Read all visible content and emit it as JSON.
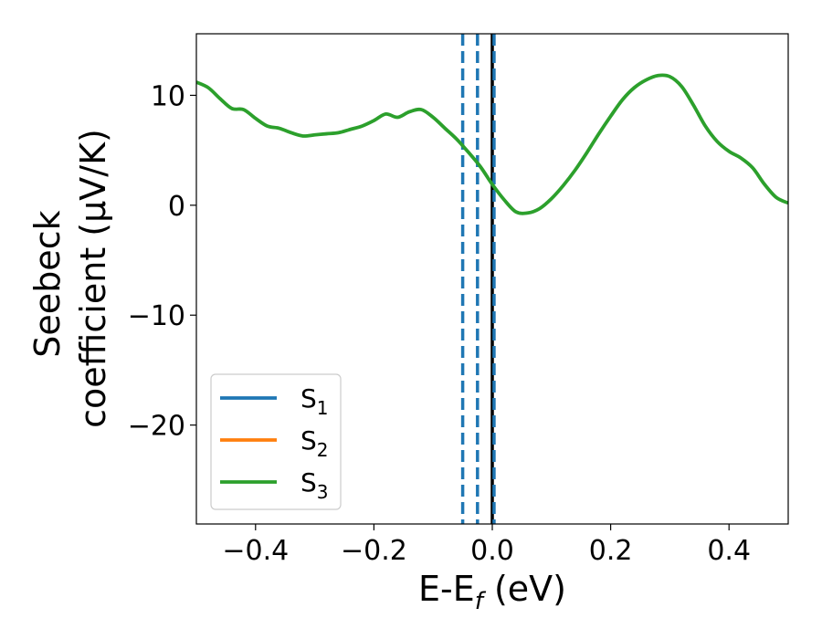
{
  "chart_data": {
    "type": "line",
    "xlabel": {
      "main": "E-E",
      "sub": "f",
      "suffix": " (eV)"
    },
    "ylabel": {
      "line1": "Seebeck",
      "line2": "coefficient  (μV/K)"
    },
    "xlim": [
      -0.5,
      0.5
    ],
    "ylim": [
      -29,
      15.6
    ],
    "xticks": [
      -0.4,
      -0.2,
      0.0,
      0.2,
      0.4
    ],
    "xtick_labels": [
      "−0.4",
      "−0.2",
      "0.0",
      "0.2",
      "0.4"
    ],
    "yticks": [
      -20,
      -10,
      0,
      10
    ],
    "ytick_labels": [
      "−20",
      "−10",
      "0",
      "10"
    ],
    "grid": false,
    "legend_position": "lower-left",
    "series": [
      {
        "name": "S",
        "sub": "1",
        "color": "#1f77b4",
        "x": [],
        "y": []
      },
      {
        "name": "S",
        "sub": "2",
        "color": "#ff7f0e",
        "x": [],
        "y": []
      },
      {
        "name": "S",
        "sub": "3",
        "color": "#2ca02c",
        "x": [
          -0.5,
          -0.48,
          -0.46,
          -0.44,
          -0.42,
          -0.4,
          -0.38,
          -0.36,
          -0.34,
          -0.32,
          -0.3,
          -0.28,
          -0.26,
          -0.24,
          -0.22,
          -0.2,
          -0.18,
          -0.16,
          -0.14,
          -0.12,
          -0.1,
          -0.08,
          -0.06,
          -0.04,
          -0.02,
          0.0,
          0.02,
          0.04,
          0.06,
          0.08,
          0.1,
          0.12,
          0.14,
          0.16,
          0.18,
          0.2,
          0.22,
          0.24,
          0.26,
          0.28,
          0.3,
          0.32,
          0.34,
          0.36,
          0.38,
          0.4,
          0.42,
          0.44,
          0.46,
          0.48,
          0.5
        ],
        "y": [
          11.2,
          10.7,
          9.7,
          8.8,
          8.7,
          7.9,
          7.2,
          7.0,
          6.6,
          6.3,
          6.4,
          6.5,
          6.6,
          6.9,
          7.2,
          7.7,
          8.3,
          8.0,
          8.5,
          8.7,
          8.0,
          7.0,
          6.0,
          4.8,
          3.5,
          1.9,
          0.5,
          -0.6,
          -0.7,
          -0.3,
          0.6,
          1.8,
          3.2,
          4.8,
          6.5,
          8.1,
          9.6,
          10.7,
          11.4,
          11.8,
          11.7,
          10.8,
          9.1,
          7.2,
          5.8,
          4.9,
          4.3,
          3.4,
          1.9,
          0.7,
          0.2
        ]
      }
    ],
    "vlines": [
      {
        "x": -0.05,
        "style": "dashed",
        "color": "#1f77b4"
      },
      {
        "x": -0.025,
        "style": "dashed",
        "color": "#1f77b4"
      },
      {
        "x": 0.0,
        "style": "solid",
        "color": "#000000"
      },
      {
        "x": 0.003,
        "style": "dashed",
        "color": "#1f77b4"
      }
    ]
  }
}
